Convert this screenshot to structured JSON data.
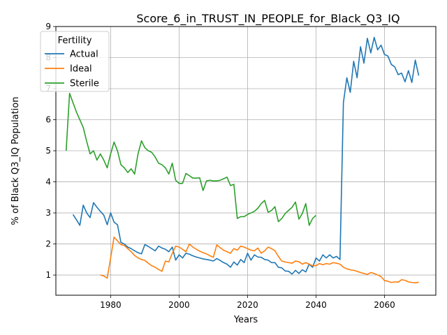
{
  "chart_data": {
    "type": "line",
    "title": "Score_6_in_TRUST_IN_PEOPLE_for_Black_Q3_IQ",
    "xlabel": "Years",
    "ylabel": "% of Black Q3_IQ Population",
    "xlim": [
      1964,
      2075
    ],
    "ylim": [
      0.35,
      9.0
    ],
    "xticks": [
      1980,
      2000,
      2020,
      2040,
      2060
    ],
    "yticks": [
      1,
      2,
      3,
      4,
      5,
      6,
      7,
      8,
      9
    ],
    "grid": true,
    "legend": {
      "title": "Fertility",
      "position": "top-left"
    },
    "series": [
      {
        "name": "Actual",
        "color": "#1f77b4",
        "points": [
          [
            1969,
            2.95
          ],
          [
            1970,
            2.78
          ],
          [
            1971,
            2.6
          ],
          [
            1972,
            3.25
          ],
          [
            1973,
            3.0
          ],
          [
            1974,
            2.85
          ],
          [
            1975,
            3.33
          ],
          [
            1976,
            3.18
          ],
          [
            1977,
            3.05
          ],
          [
            1978,
            2.93
          ],
          [
            1979,
            2.62
          ],
          [
            1980,
            3.0
          ],
          [
            1981,
            2.7
          ],
          [
            1982,
            2.62
          ],
          [
            1983,
            2.05
          ],
          [
            1984,
            2.0
          ],
          [
            1985,
            1.9
          ],
          [
            1986,
            1.85
          ],
          [
            1987,
            1.78
          ],
          [
            1988,
            1.72
          ],
          [
            1989,
            1.68
          ],
          [
            1990,
            1.98
          ],
          [
            1991,
            1.92
          ],
          [
            1992,
            1.85
          ],
          [
            1993,
            1.78
          ],
          [
            1994,
            1.93
          ],
          [
            1995,
            1.87
          ],
          [
            1996,
            1.83
          ],
          [
            1997,
            1.75
          ],
          [
            1998,
            1.9
          ],
          [
            1999,
            1.48
          ],
          [
            2000,
            1.65
          ],
          [
            2001,
            1.55
          ],
          [
            2002,
            1.7
          ],
          [
            2003,
            1.67
          ],
          [
            2004,
            1.62
          ],
          [
            2005,
            1.58
          ],
          [
            2006,
            1.55
          ],
          [
            2007,
            1.52
          ],
          [
            2008,
            1.5
          ],
          [
            2009,
            1.48
          ],
          [
            2010,
            1.45
          ],
          [
            2011,
            1.53
          ],
          [
            2012,
            1.47
          ],
          [
            2013,
            1.4
          ],
          [
            2014,
            1.35
          ],
          [
            2015,
            1.25
          ],
          [
            2016,
            1.42
          ],
          [
            2017,
            1.32
          ],
          [
            2018,
            1.5
          ],
          [
            2019,
            1.4
          ],
          [
            2020,
            1.7
          ],
          [
            2021,
            1.48
          ],
          [
            2022,
            1.65
          ],
          [
            2023,
            1.58
          ],
          [
            2024,
            1.57
          ],
          [
            2025,
            1.5
          ],
          [
            2026,
            1.48
          ],
          [
            2027,
            1.4
          ],
          [
            2028,
            1.4
          ],
          [
            2029,
            1.25
          ],
          [
            2030,
            1.23
          ],
          [
            2031,
            1.13
          ],
          [
            2032,
            1.12
          ],
          [
            2033,
            1.03
          ],
          [
            2034,
            1.15
          ],
          [
            2035,
            1.05
          ],
          [
            2036,
            1.17
          ],
          [
            2037,
            1.1
          ],
          [
            2038,
            1.35
          ],
          [
            2039,
            1.25
          ],
          [
            2040,
            1.55
          ],
          [
            2041,
            1.45
          ],
          [
            2042,
            1.65
          ],
          [
            2043,
            1.55
          ],
          [
            2044,
            1.65
          ],
          [
            2045,
            1.55
          ],
          [
            2046,
            1.6
          ],
          [
            2047,
            1.5
          ],
          [
            2048,
            6.55
          ],
          [
            2049,
            7.35
          ],
          [
            2050,
            6.88
          ],
          [
            2051,
            7.88
          ],
          [
            2052,
            7.35
          ],
          [
            2053,
            8.35
          ],
          [
            2054,
            7.82
          ],
          [
            2055,
            8.62
          ],
          [
            2056,
            8.15
          ],
          [
            2057,
            8.65
          ],
          [
            2058,
            8.25
          ],
          [
            2059,
            8.4
          ],
          [
            2060,
            8.1
          ],
          [
            2061,
            8.05
          ],
          [
            2062,
            7.78
          ],
          [
            2063,
            7.7
          ],
          [
            2064,
            7.45
          ],
          [
            2065,
            7.5
          ],
          [
            2066,
            7.22
          ],
          [
            2067,
            7.58
          ],
          [
            2068,
            7.2
          ],
          [
            2069,
            7.92
          ],
          [
            2070,
            7.42
          ]
        ]
      },
      {
        "name": "Ideal",
        "color": "#ff7f0e",
        "points": [
          [
            1977,
            1.0
          ],
          [
            1978,
            0.97
          ],
          [
            1979,
            0.9
          ],
          [
            1980,
            1.55
          ],
          [
            1981,
            2.22
          ],
          [
            1982,
            2.1
          ],
          [
            1983,
            1.98
          ],
          [
            1984,
            1.95
          ],
          [
            1985,
            1.85
          ],
          [
            1986,
            1.75
          ],
          [
            1987,
            1.63
          ],
          [
            1988,
            1.55
          ],
          [
            1989,
            1.5
          ],
          [
            1990,
            1.47
          ],
          [
            1991,
            1.38
          ],
          [
            1992,
            1.3
          ],
          [
            1993,
            1.25
          ],
          [
            1994,
            1.18
          ],
          [
            1995,
            1.12
          ],
          [
            1996,
            1.45
          ],
          [
            1997,
            1.42
          ],
          [
            1998,
            1.7
          ],
          [
            1999,
            1.93
          ],
          [
            2000,
            1.9
          ],
          [
            2001,
            1.83
          ],
          [
            2002,
            1.75
          ],
          [
            2003,
            2.0
          ],
          [
            2004,
            1.9
          ],
          [
            2005,
            1.83
          ],
          [
            2006,
            1.77
          ],
          [
            2007,
            1.72
          ],
          [
            2008,
            1.68
          ],
          [
            2009,
            1.62
          ],
          [
            2010,
            1.57
          ],
          [
            2011,
            1.97
          ],
          [
            2012,
            1.88
          ],
          [
            2013,
            1.8
          ],
          [
            2014,
            1.75
          ],
          [
            2015,
            1.7
          ],
          [
            2016,
            1.85
          ],
          [
            2017,
            1.8
          ],
          [
            2018,
            1.93
          ],
          [
            2019,
            1.9
          ],
          [
            2020,
            1.85
          ],
          [
            2021,
            1.8
          ],
          [
            2022,
            1.78
          ],
          [
            2023,
            1.87
          ],
          [
            2024,
            1.7
          ],
          [
            2025,
            1.78
          ],
          [
            2026,
            1.9
          ],
          [
            2027,
            1.85
          ],
          [
            2028,
            1.78
          ],
          [
            2029,
            1.6
          ],
          [
            2030,
            1.45
          ],
          [
            2031,
            1.42
          ],
          [
            2032,
            1.4
          ],
          [
            2033,
            1.38
          ],
          [
            2034,
            1.45
          ],
          [
            2035,
            1.43
          ],
          [
            2036,
            1.35
          ],
          [
            2037,
            1.4
          ],
          [
            2038,
            1.35
          ],
          [
            2039,
            1.3
          ],
          [
            2040,
            1.3
          ],
          [
            2041,
            1.37
          ],
          [
            2042,
            1.33
          ],
          [
            2043,
            1.37
          ],
          [
            2044,
            1.35
          ],
          [
            2045,
            1.4
          ],
          [
            2046,
            1.38
          ],
          [
            2047,
            1.35
          ],
          [
            2048,
            1.25
          ],
          [
            2049,
            1.2
          ],
          [
            2050,
            1.17
          ],
          [
            2051,
            1.15
          ],
          [
            2052,
            1.12
          ],
          [
            2053,
            1.08
          ],
          [
            2054,
            1.05
          ],
          [
            2055,
            1.02
          ],
          [
            2056,
            1.08
          ],
          [
            2057,
            1.05
          ],
          [
            2058,
            1.0
          ],
          [
            2059,
            0.95
          ],
          [
            2060,
            0.82
          ],
          [
            2061,
            0.8
          ],
          [
            2062,
            0.76
          ],
          [
            2063,
            0.78
          ],
          [
            2064,
            0.77
          ],
          [
            2065,
            0.85
          ],
          [
            2066,
            0.83
          ],
          [
            2067,
            0.78
          ],
          [
            2068,
            0.76
          ],
          [
            2069,
            0.75
          ],
          [
            2070,
            0.77
          ]
        ]
      },
      {
        "name": "Sterile",
        "color": "#2ca02c",
        "points": [
          [
            1967,
            5.0
          ],
          [
            1968,
            6.85
          ],
          [
            1969,
            6.55
          ],
          [
            1970,
            6.25
          ],
          [
            1971,
            6.0
          ],
          [
            1972,
            5.75
          ],
          [
            1973,
            5.3
          ],
          [
            1974,
            4.9
          ],
          [
            1975,
            5.0
          ],
          [
            1976,
            4.7
          ],
          [
            1977,
            4.9
          ],
          [
            1978,
            4.7
          ],
          [
            1979,
            4.45
          ],
          [
            1980,
            4.9
          ],
          [
            1981,
            5.28
          ],
          [
            1982,
            5.0
          ],
          [
            1983,
            4.55
          ],
          [
            1984,
            4.45
          ],
          [
            1985,
            4.3
          ],
          [
            1986,
            4.42
          ],
          [
            1987,
            4.25
          ],
          [
            1988,
            4.9
          ],
          [
            1989,
            5.32
          ],
          [
            1990,
            5.1
          ],
          [
            1991,
            5.0
          ],
          [
            1992,
            4.95
          ],
          [
            1993,
            4.8
          ],
          [
            1994,
            4.6
          ],
          [
            1995,
            4.55
          ],
          [
            1996,
            4.45
          ],
          [
            1997,
            4.25
          ],
          [
            1998,
            4.6
          ],
          [
            1999,
            4.05
          ],
          [
            2000,
            3.95
          ],
          [
            2001,
            3.95
          ],
          [
            2002,
            4.27
          ],
          [
            2003,
            4.2
          ],
          [
            2004,
            4.12
          ],
          [
            2005,
            4.12
          ],
          [
            2006,
            4.13
          ],
          [
            2007,
            3.72
          ],
          [
            2008,
            4.03
          ],
          [
            2009,
            4.05
          ],
          [
            2010,
            4.03
          ],
          [
            2011,
            4.03
          ],
          [
            2012,
            4.05
          ],
          [
            2013,
            4.1
          ],
          [
            2014,
            4.15
          ],
          [
            2015,
            3.88
          ],
          [
            2016,
            3.92
          ],
          [
            2017,
            2.82
          ],
          [
            2018,
            2.88
          ],
          [
            2019,
            2.88
          ],
          [
            2020,
            2.95
          ],
          [
            2021,
            3.0
          ],
          [
            2022,
            3.05
          ],
          [
            2023,
            3.15
          ],
          [
            2024,
            3.3
          ],
          [
            2025,
            3.4
          ],
          [
            2026,
            3.02
          ],
          [
            2027,
            3.08
          ],
          [
            2028,
            3.2
          ],
          [
            2029,
            2.72
          ],
          [
            2030,
            2.82
          ],
          [
            2031,
            2.98
          ],
          [
            2032,
            3.08
          ],
          [
            2033,
            3.18
          ],
          [
            2034,
            3.35
          ],
          [
            2035,
            2.8
          ],
          [
            2036,
            2.98
          ],
          [
            2037,
            3.3
          ],
          [
            2038,
            2.6
          ],
          [
            2039,
            2.82
          ],
          [
            2040,
            2.92
          ]
        ]
      }
    ]
  }
}
